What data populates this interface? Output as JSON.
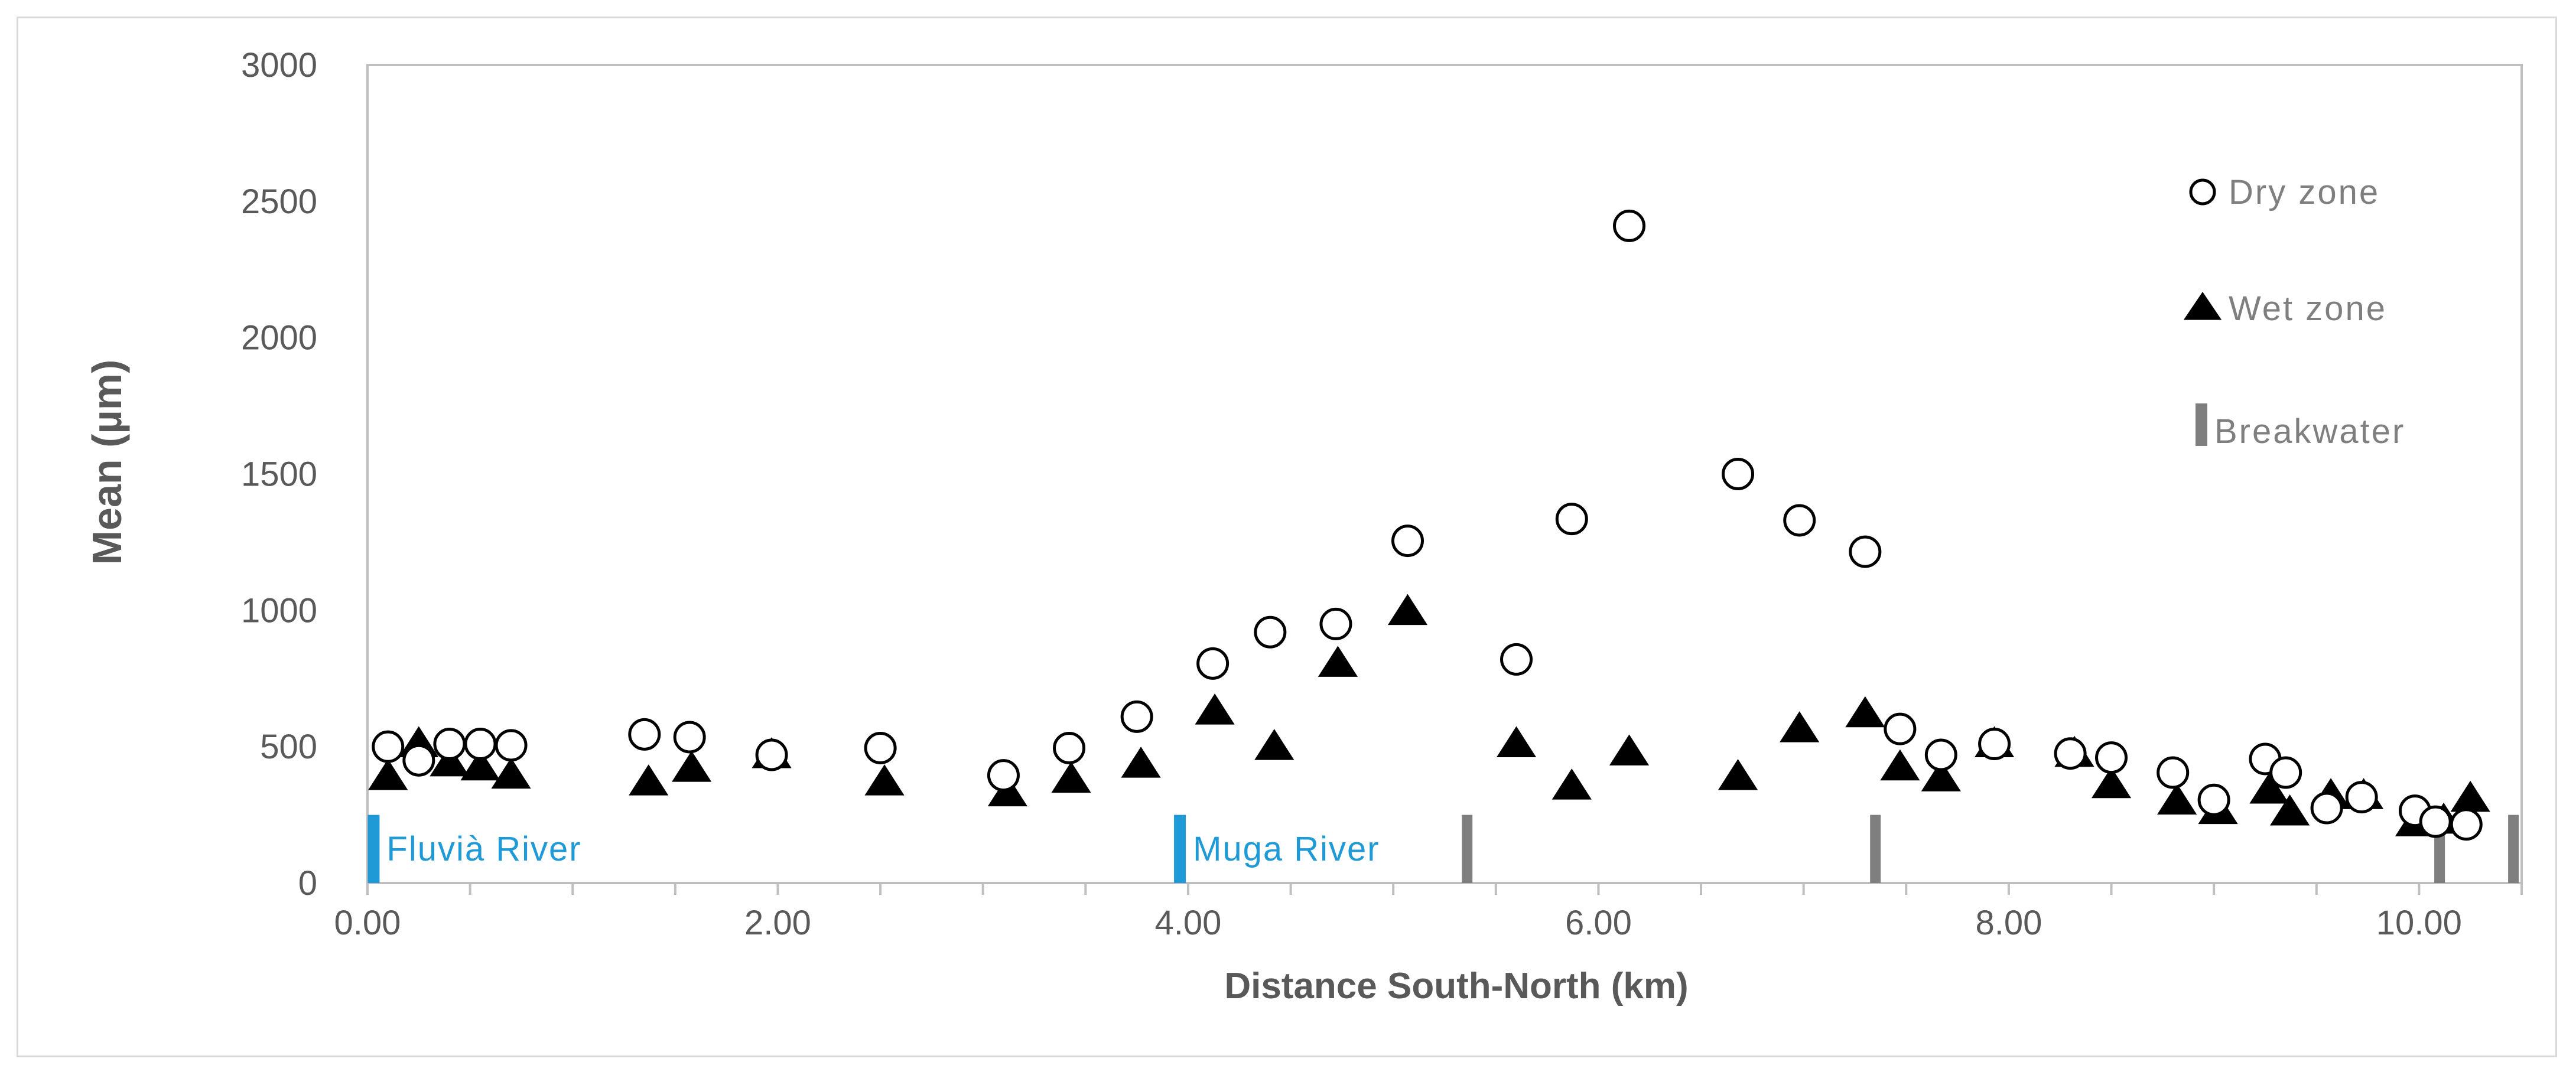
{
  "chart_data": {
    "type": "scatter",
    "xlabel": "Distance  South-North (km)",
    "ylabel": "Mean  (µm)",
    "xlim": [
      0,
      10.5
    ],
    "ylim": [
      0,
      3000
    ],
    "x_ticks": [
      "0.00",
      "2.00",
      "4.00",
      "6.00",
      "8.00",
      "10.00"
    ],
    "y_ticks": [
      "0",
      "500",
      "1000",
      "1500",
      "2000",
      "2500",
      "3000"
    ],
    "grid": false,
    "legend_position": "top-right",
    "colors": {
      "dry": "#000000",
      "wet": "#000000",
      "river": "#1f9ad6",
      "breakwater": "#7f7f7f",
      "axis": "#bfbfbf"
    },
    "series": [
      {
        "name": "Dry zone",
        "marker": "open-circle",
        "points": [
          [
            0.1,
            500
          ],
          [
            0.25,
            450
          ],
          [
            0.4,
            510
          ],
          [
            0.55,
            510
          ],
          [
            0.7,
            505
          ],
          [
            1.35,
            545
          ],
          [
            1.57,
            535
          ],
          [
            1.97,
            470
          ],
          [
            2.5,
            495
          ],
          [
            3.1,
            395
          ],
          [
            3.42,
            495
          ],
          [
            3.75,
            610
          ],
          [
            4.12,
            805
          ],
          [
            4.4,
            920
          ],
          [
            4.72,
            950
          ],
          [
            5.07,
            1255
          ],
          [
            5.6,
            820
          ],
          [
            5.87,
            1335
          ],
          [
            6.15,
            2410
          ],
          [
            6.68,
            1500
          ],
          [
            6.98,
            1330
          ],
          [
            7.3,
            1215
          ],
          [
            7.47,
            565
          ],
          [
            7.67,
            470
          ],
          [
            7.93,
            510
          ],
          [
            8.3,
            475
          ],
          [
            8.5,
            460
          ],
          [
            8.8,
            405
          ],
          [
            9.0,
            305
          ],
          [
            9.25,
            455
          ],
          [
            9.35,
            405
          ],
          [
            9.55,
            275
          ],
          [
            9.72,
            315
          ],
          [
            9.98,
            265
          ],
          [
            10.08,
            225
          ],
          [
            10.23,
            215
          ]
        ]
      },
      {
        "name": "Wet zone",
        "marker": "filled-triangle",
        "points": [
          [
            0.1,
            390
          ],
          [
            0.25,
            510
          ],
          [
            0.4,
            440
          ],
          [
            0.55,
            425
          ],
          [
            0.7,
            395
          ],
          [
            1.37,
            370
          ],
          [
            1.58,
            420
          ],
          [
            1.97,
            470
          ],
          [
            2.52,
            370
          ],
          [
            3.12,
            330
          ],
          [
            3.43,
            380
          ],
          [
            3.77,
            435
          ],
          [
            4.13,
            630
          ],
          [
            4.42,
            500
          ],
          [
            4.73,
            805
          ],
          [
            5.07,
            995
          ],
          [
            5.6,
            510
          ],
          [
            5.87,
            355
          ],
          [
            6.15,
            480
          ],
          [
            6.68,
            390
          ],
          [
            6.98,
            565
          ],
          [
            7.3,
            620
          ],
          [
            7.47,
            425
          ],
          [
            7.67,
            385
          ],
          [
            7.93,
            510
          ],
          [
            8.32,
            475
          ],
          [
            8.5,
            360
          ],
          [
            8.82,
            300
          ],
          [
            9.02,
            265
          ],
          [
            9.27,
            340
          ],
          [
            9.37,
            260
          ],
          [
            9.57,
            320
          ],
          [
            9.73,
            320
          ],
          [
            9.98,
            220
          ],
          [
            10.12,
            230
          ],
          [
            10.25,
            310
          ]
        ]
      }
    ],
    "rivers": [
      {
        "name": "Fluvià River",
        "x": 0.03
      },
      {
        "name": "Muga River",
        "x": 3.96
      }
    ],
    "breakwaters": [
      5.36,
      7.35,
      10.1,
      10.46
    ],
    "marker_heights": {
      "river": 250,
      "breakwater": 250
    },
    "legend": [
      {
        "label": "Dry zone",
        "marker": "open-circle"
      },
      {
        "label": "Wet zone",
        "marker": "filled-triangle"
      },
      {
        "label": "Breakwater",
        "marker": "gray-bar"
      }
    ]
  }
}
